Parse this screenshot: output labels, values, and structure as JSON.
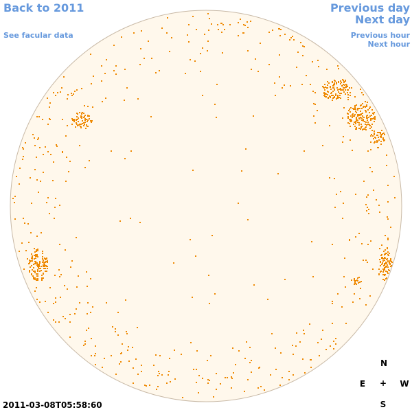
{
  "nav": {
    "back_label": "Back to 2011",
    "facular_label": "See facular data",
    "prev_day_label": "Previous day",
    "next_day_label": "Next day",
    "prev_hour_label": "Previous hour",
    "next_hour_label": "Next hour"
  },
  "timestamp": "2011-03-08T05:58:60",
  "compass": {
    "north": "N",
    "south": "S",
    "east": "E",
    "west": "W",
    "center": "+"
  },
  "colors": {
    "link": "#6699dd",
    "disk_fill": "#fff8ec",
    "disk_edge": "#c8b9a6",
    "facula": "#ee8800"
  }
}
